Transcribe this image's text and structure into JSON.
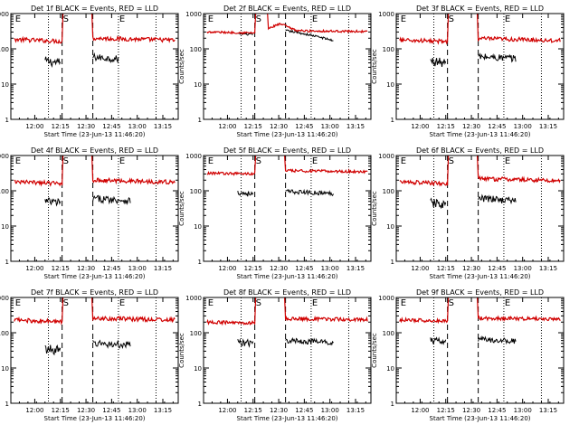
{
  "figure": {
    "colors": {
      "events": "#000000",
      "lld": "#d00000",
      "axes": "#000000"
    },
    "shared": {
      "ylabel": "Counts/sec",
      "xlabel": "Start Time (23-Jun-13 11:46:20)",
      "ytick_labels": [
        "1",
        "10",
        "100",
        "1000"
      ],
      "yrange": [
        1,
        1000
      ],
      "xrange_minutes": [
        0,
        98
      ],
      "start_time_label": "23-Jun-13 11:46:20"
    },
    "chart_data": [
      {
        "type": "line",
        "title": "Det 1f BLACK = Events, RED = LLD",
        "xtick_labels": [
          "12:00",
          "12:15",
          "12:30",
          "12:45",
          "13:00",
          "13:15"
        ],
        "xtick_minutes": [
          14,
          29,
          44,
          59,
          74,
          89
        ],
        "dotted_markers_minutes": [
          22,
          63,
          85
        ],
        "dashed_markers_minutes": [
          30,
          48
        ],
        "markers": [
          {
            "label": "E",
            "minute": 2
          },
          {
            "label": "S",
            "minute": 30
          },
          {
            "label": "E",
            "minute": 63
          }
        ],
        "series": [
          {
            "name": "Events",
            "color": "#000000",
            "segments": [
              {
                "x_range": [
                  20,
                  29
                ],
                "baseline": 45,
                "noise": 0.13
              },
              {
                "x_range": [
                  48,
                  63
                ],
                "baseline": 58,
                "noise": 0.1
              }
            ]
          },
          {
            "name": "LLD",
            "color": "#d00000",
            "segments": [
              {
                "x_range": [
                  2,
                  30
                ],
                "baseline": 185,
                "noise": 0.06,
                "rise_to": 1800
              },
              {
                "x_range": [
                  48,
                  96
                ],
                "baseline": 200,
                "noise": 0.06,
                "peak_start": 1800
              }
            ]
          }
        ]
      },
      {
        "type": "line",
        "title": "Det 2f BLACK = Events, RED = LLD",
        "xtick_labels": [
          "12:00",
          "12:15",
          "12:30",
          "12:45",
          "13:00",
          "13:15"
        ],
        "xtick_minutes": [
          14,
          29,
          44,
          59,
          74,
          89
        ],
        "dotted_markers_minutes": [
          22,
          63,
          85
        ],
        "dashed_markers_minutes": [
          30,
          48
        ],
        "markers": [
          {
            "label": "E",
            "minute": 2
          },
          {
            "label": "S",
            "minute": 30
          },
          {
            "label": "E",
            "minute": 63
          }
        ],
        "series": [
          {
            "name": "Events",
            "color": "#000000",
            "segments": [
              {
                "x_range": [
                  20,
                  29
                ],
                "baseline": 270,
                "noise": 0.03
              },
              {
                "x_range": [
                  48,
                  76
                ],
                "baseline": 330,
                "noise": 0.03,
                "decay": 0.45
              }
            ]
          },
          {
            "name": "LLD",
            "color": "#d00000",
            "segments": [
              {
                "x_range": [
                  2,
                  30
                ],
                "baseline": 300,
                "noise": 0.03,
                "rise_to": 1500
              },
              {
                "x_range": [
                  38,
                  96
                ],
                "baseline": 330,
                "noise": 0.03,
                "peak_start": 1500,
                "bump": 1.5
              }
            ]
          }
        ]
      },
      {
        "type": "line",
        "title": "Det 3f BLACK = Events, RED = LLD",
        "xtick_labels": [
          "12:00",
          "12:15",
          "12:30",
          "12:45",
          "13:00",
          "13:15"
        ],
        "xtick_minutes": [
          14,
          29,
          44,
          59,
          74,
          89
        ],
        "dotted_markers_minutes": [
          22,
          63,
          85
        ],
        "dashed_markers_minutes": [
          30,
          48
        ],
        "markers": [
          {
            "label": "E",
            "minute": 2
          },
          {
            "label": "S",
            "minute": 30
          },
          {
            "label": "E",
            "minute": 63
          }
        ],
        "series": [
          {
            "name": "Events",
            "color": "#000000",
            "segments": [
              {
                "x_range": [
                  20,
                  29
                ],
                "baseline": 45,
                "noise": 0.13
              },
              {
                "x_range": [
                  48,
                  70
                ],
                "baseline": 60,
                "noise": 0.1
              }
            ]
          },
          {
            "name": "LLD",
            "color": "#d00000",
            "segments": [
              {
                "x_range": [
                  2,
                  30
                ],
                "baseline": 180,
                "noise": 0.06,
                "rise_to": 1800
              },
              {
                "x_range": [
                  48,
                  96
                ],
                "baseline": 195,
                "noise": 0.06,
                "peak_start": 1800
              }
            ]
          }
        ]
      },
      {
        "type": "line",
        "title": "Det 4f BLACK = Events, RED = LLD",
        "xtick_labels": [
          "12:00",
          "12:15",
          "12:30",
          "12:45",
          "13:00",
          "13:15"
        ],
        "xtick_minutes": [
          14,
          29,
          44,
          59,
          74,
          89
        ],
        "dotted_markers_minutes": [
          22,
          63,
          85
        ],
        "dashed_markers_minutes": [
          30,
          48
        ],
        "markers": [
          {
            "label": "E",
            "minute": 2
          },
          {
            "label": "S",
            "minute": 30
          },
          {
            "label": "E",
            "minute": 63
          }
        ],
        "series": [
          {
            "name": "Events",
            "color": "#000000",
            "segments": [
              {
                "x_range": [
                  20,
                  29
                ],
                "baseline": 50,
                "noise": 0.13
              },
              {
                "x_range": [
                  48,
                  70
                ],
                "baseline": 60,
                "noise": 0.1
              }
            ]
          },
          {
            "name": "LLD",
            "color": "#d00000",
            "segments": [
              {
                "x_range": [
                  2,
                  30
                ],
                "baseline": 180,
                "noise": 0.06,
                "rise_to": 1800
              },
              {
                "x_range": [
                  48,
                  96
                ],
                "baseline": 200,
                "noise": 0.06,
                "peak_start": 1800
              }
            ]
          }
        ]
      },
      {
        "type": "line",
        "title": "Det 5f BLACK = Events, RED = LLD",
        "xtick_labels": [
          "12:00",
          "12:15",
          "12:30",
          "12:45",
          "13:00",
          "13:15"
        ],
        "xtick_minutes": [
          14,
          29,
          44,
          59,
          74,
          89
        ],
        "dotted_markers_minutes": [
          22,
          63,
          85
        ],
        "dashed_markers_minutes": [
          30,
          48
        ],
        "markers": [
          {
            "label": "E",
            "minute": 2
          },
          {
            "label": "S",
            "minute": 30
          },
          {
            "label": "E",
            "minute": 63
          }
        ],
        "series": [
          {
            "name": "Events",
            "color": "#000000",
            "segments": [
              {
                "x_range": [
                  20,
                  29
                ],
                "baseline": 90,
                "noise": 0.08
              },
              {
                "x_range": [
                  48,
                  76
                ],
                "baseline": 95,
                "noise": 0.06
              }
            ]
          },
          {
            "name": "LLD",
            "color": "#d00000",
            "segments": [
              {
                "x_range": [
                  2,
                  30
                ],
                "baseline": 320,
                "noise": 0.04,
                "rise_to": 1700
              },
              {
                "x_range": [
                  48,
                  96
                ],
                "baseline": 370,
                "noise": 0.04,
                "peak_start": 1700
              }
            ]
          }
        ]
      },
      {
        "type": "line",
        "title": "Det 6f BLACK = Events, RED = LLD",
        "xtick_labels": [
          "12:00",
          "12:15",
          "12:30",
          "12:45",
          "13:00",
          "13:15"
        ],
        "xtick_minutes": [
          14,
          29,
          44,
          59,
          74,
          89
        ],
        "dotted_markers_minutes": [
          22,
          63,
          85
        ],
        "dashed_markers_minutes": [
          30,
          48
        ],
        "markers": [
          {
            "label": "E",
            "minute": 2
          },
          {
            "label": "S",
            "minute": 30
          },
          {
            "label": "E",
            "minute": 63
          }
        ],
        "series": [
          {
            "name": "Events",
            "color": "#000000",
            "segments": [
              {
                "x_range": [
                  20,
                  29
                ],
                "baseline": 45,
                "noise": 0.13
              },
              {
                "x_range": [
                  48,
                  70
                ],
                "baseline": 60,
                "noise": 0.1
              }
            ]
          },
          {
            "name": "LLD",
            "color": "#d00000",
            "segments": [
              {
                "x_range": [
                  2,
                  30
                ],
                "baseline": 180,
                "noise": 0.06,
                "rise_to": 1800
              },
              {
                "x_range": [
                  48,
                  96
                ],
                "baseline": 220,
                "noise": 0.06,
                "peak_start": 1800
              }
            ]
          }
        ]
      },
      {
        "type": "line",
        "title": "Det 7f BLACK = Events, RED = LLD",
        "xtick_labels": [
          "12:00",
          "12:15",
          "12:30",
          "12:45",
          "13:00",
          "13:15"
        ],
        "xtick_minutes": [
          14,
          29,
          44,
          59,
          74,
          89
        ],
        "dotted_markers_minutes": [
          22,
          63,
          85
        ],
        "dashed_markers_minutes": [
          30,
          48
        ],
        "markers": [
          {
            "label": "E",
            "minute": 2
          },
          {
            "label": "S",
            "minute": 30
          },
          {
            "label": "E",
            "minute": 63
          }
        ],
        "series": [
          {
            "name": "Events",
            "color": "#000000",
            "segments": [
              {
                "x_range": [
                  20,
                  29
                ],
                "baseline": 35,
                "noise": 0.13
              },
              {
                "x_range": [
                  48,
                  70
                ],
                "baseline": 50,
                "noise": 0.1
              }
            ]
          },
          {
            "name": "LLD",
            "color": "#d00000",
            "segments": [
              {
                "x_range": [
                  2,
                  30
                ],
                "baseline": 230,
                "noise": 0.06,
                "rise_to": 1800
              },
              {
                "x_range": [
                  48,
                  96
                ],
                "baseline": 260,
                "noise": 0.06,
                "peak_start": 1800
              }
            ]
          }
        ]
      },
      {
        "type": "line",
        "title": "Det 8f BLACK = Events, RED = LLD",
        "xtick_labels": [
          "12:00",
          "12:15",
          "12:30",
          "12:45",
          "13:00",
          "13:15"
        ],
        "xtick_minutes": [
          14,
          29,
          44,
          59,
          74,
          89
        ],
        "dotted_markers_minutes": [
          22,
          63,
          85
        ],
        "dashed_markers_minutes": [
          30,
          48
        ],
        "markers": [
          {
            "label": "E",
            "minute": 2
          },
          {
            "label": "S",
            "minute": 30
          },
          {
            "label": "E",
            "minute": 63
          }
        ],
        "series": [
          {
            "name": "Events",
            "color": "#000000",
            "segments": [
              {
                "x_range": [
                  20,
                  29
                ],
                "baseline": 55,
                "noise": 0.1
              },
              {
                "x_range": [
                  48,
                  76
                ],
                "baseline": 60,
                "noise": 0.08
              }
            ]
          },
          {
            "name": "LLD",
            "color": "#d00000",
            "segments": [
              {
                "x_range": [
                  2,
                  30
                ],
                "baseline": 200,
                "noise": 0.05,
                "rise_to": 1700
              },
              {
                "x_range": [
                  48,
                  96
                ],
                "baseline": 250,
                "noise": 0.05,
                "peak_start": 1700
              }
            ]
          }
        ]
      },
      {
        "type": "line",
        "title": "Det 9f BLACK = Events, RED = LLD",
        "xtick_labels": [
          "12:00",
          "12:15",
          "12:30",
          "12:45",
          "13:00",
          "13:15"
        ],
        "xtick_minutes": [
          14,
          29,
          44,
          59,
          74,
          89
        ],
        "dotted_markers_minutes": [
          22,
          63,
          85
        ],
        "dashed_markers_minutes": [
          30,
          48
        ],
        "markers": [
          {
            "label": "E",
            "minute": 2
          },
          {
            "label": "S",
            "minute": 30
          },
          {
            "label": "E",
            "minute": 63
          }
        ],
        "series": [
          {
            "name": "Events",
            "color": "#000000",
            "segments": [
              {
                "x_range": [
                  20,
                  29
                ],
                "baseline": 60,
                "noise": 0.1
              },
              {
                "x_range": [
                  48,
                  70
                ],
                "baseline": 65,
                "noise": 0.08
              }
            ]
          },
          {
            "name": "LLD",
            "color": "#d00000",
            "segments": [
              {
                "x_range": [
                  2,
                  30
                ],
                "baseline": 230,
                "noise": 0.05,
                "rise_to": 1800
              },
              {
                "x_range": [
                  48,
                  96
                ],
                "baseline": 260,
                "noise": 0.05,
                "peak_start": 1800
              }
            ]
          }
        ]
      }
    ]
  }
}
